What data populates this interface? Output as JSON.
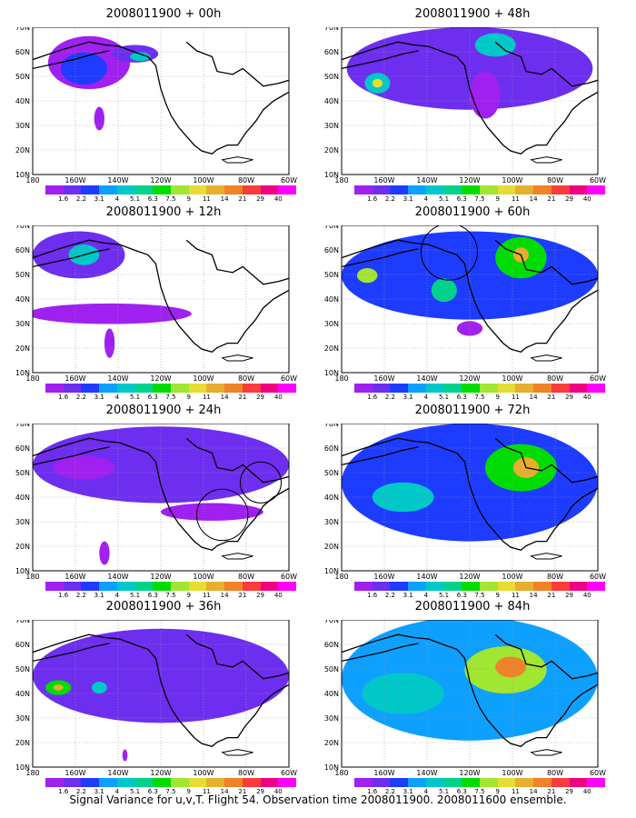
{
  "panels": [
    {
      "title": "2008011900 + 00h"
    },
    {
      "title": "2008011900 + 48h"
    },
    {
      "title": "2008011900 + 12h"
    },
    {
      "title": "2008011900 + 60h"
    },
    {
      "title": "2008011900 + 24h"
    },
    {
      "title": "2008011900 + 72h"
    },
    {
      "title": "2008011900 + 36h"
    },
    {
      "title": "2008011900 + 84h"
    }
  ],
  "lat_ticks": [
    "70N",
    "60N",
    "50N",
    "40N",
    "30N",
    "20N",
    "10N"
  ],
  "lon_ticks": [
    "180",
    "160W",
    "140W",
    "120W",
    "100W",
    "80W",
    "60W"
  ],
  "colorbar": {
    "labels": [
      "1.6",
      "2.2",
      "3.1",
      "4",
      "5.1",
      "6.3",
      "7.5",
      "9",
      "11",
      "14",
      "21",
      "29",
      "40"
    ],
    "colors": [
      "#a020f0",
      "#6e2ef0",
      "#1e3cff",
      "#0ea0ff",
      "#00c8c8",
      "#00d28c",
      "#00dc00",
      "#a0e632",
      "#e6dc32",
      "#e6af2d",
      "#f08228",
      "#fa3c3c",
      "#f00082",
      "#ff00ff"
    ]
  },
  "footer": "Signal Variance for u,v,T. Flight 54. Observation time 2008011900. 2008011600 ensemble."
}
